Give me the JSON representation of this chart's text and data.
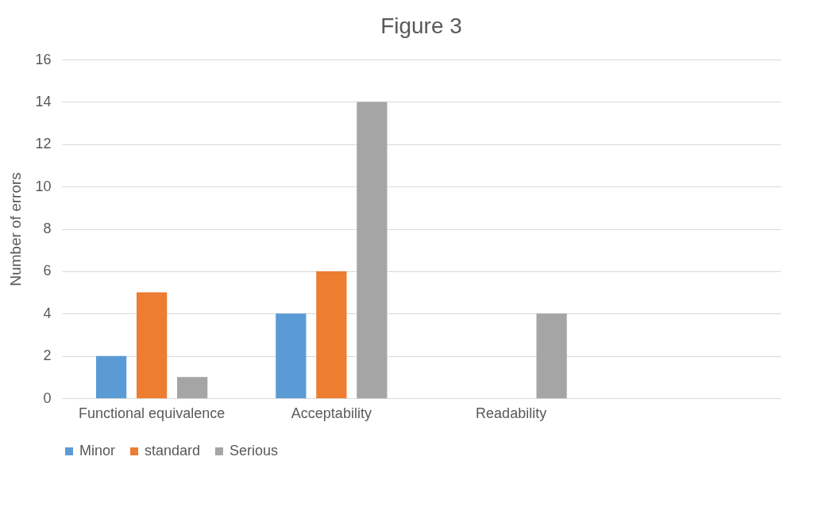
{
  "chart_data": {
    "type": "bar",
    "title": "Figure 3",
    "ylabel": "Number of errors",
    "categories": [
      "Functional equivalence",
      "Acceptability",
      "Readability",
      null
    ],
    "series": [
      {
        "name": "Minor",
        "color": "#5b9bd5",
        "values": [
          2,
          4,
          null,
          null
        ]
      },
      {
        "name": "standard",
        "color": "#ed7d31",
        "values": [
          5,
          6,
          null,
          null
        ]
      },
      {
        "name": "Serious",
        "color": "#a5a5a5",
        "values": [
          1,
          14,
          4,
          null
        ]
      }
    ],
    "ylim": [
      0,
      16
    ],
    "yticks": [
      0,
      2,
      4,
      6,
      8,
      10,
      12,
      14,
      16
    ],
    "grid": "y",
    "legend": "bottom"
  }
}
